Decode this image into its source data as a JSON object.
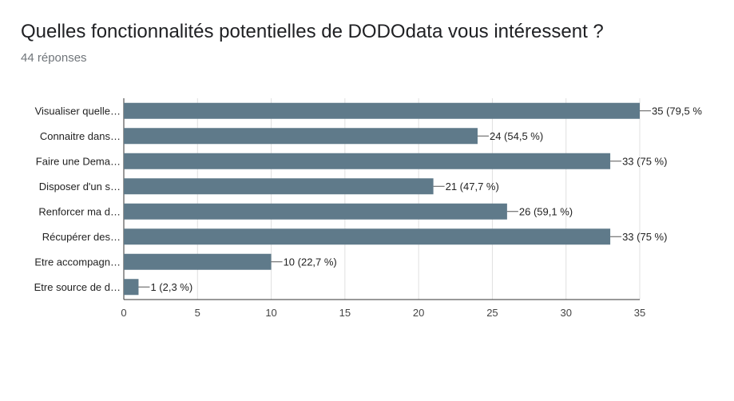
{
  "header": {
    "title": "Quelles fonctionnalités potentielles de DODOdata vous intéressent ?",
    "responses": "44 réponses"
  },
  "colors": {
    "bar": "#5f7a8a",
    "grid": "#e0e0e0",
    "axis": "#333333"
  },
  "chart_data": {
    "type": "bar",
    "orientation": "horizontal",
    "categories": [
      "Visualiser quelle…",
      "Connaitre dans…",
      "Faire une Dema…",
      "Disposer d'un s…",
      "Renforcer ma d…",
      "Récupérer des…",
      "Etre accompagn…",
      "Etre source de d…"
    ],
    "values": [
      35,
      24,
      33,
      21,
      26,
      33,
      10,
      1
    ],
    "data_labels": [
      "35 (79,5 %",
      "24 (54,5 %)",
      "33 (75 %)",
      "21 (47,7 %)",
      "26 (59,1 %)",
      "33 (75 %)",
      "10 (22,7 %)",
      "1 (2,3 %)"
    ],
    "xlim": [
      0,
      35
    ],
    "xticks": [
      0,
      5,
      10,
      15,
      20,
      25,
      30,
      35
    ],
    "grid": true,
    "legend": "none"
  }
}
